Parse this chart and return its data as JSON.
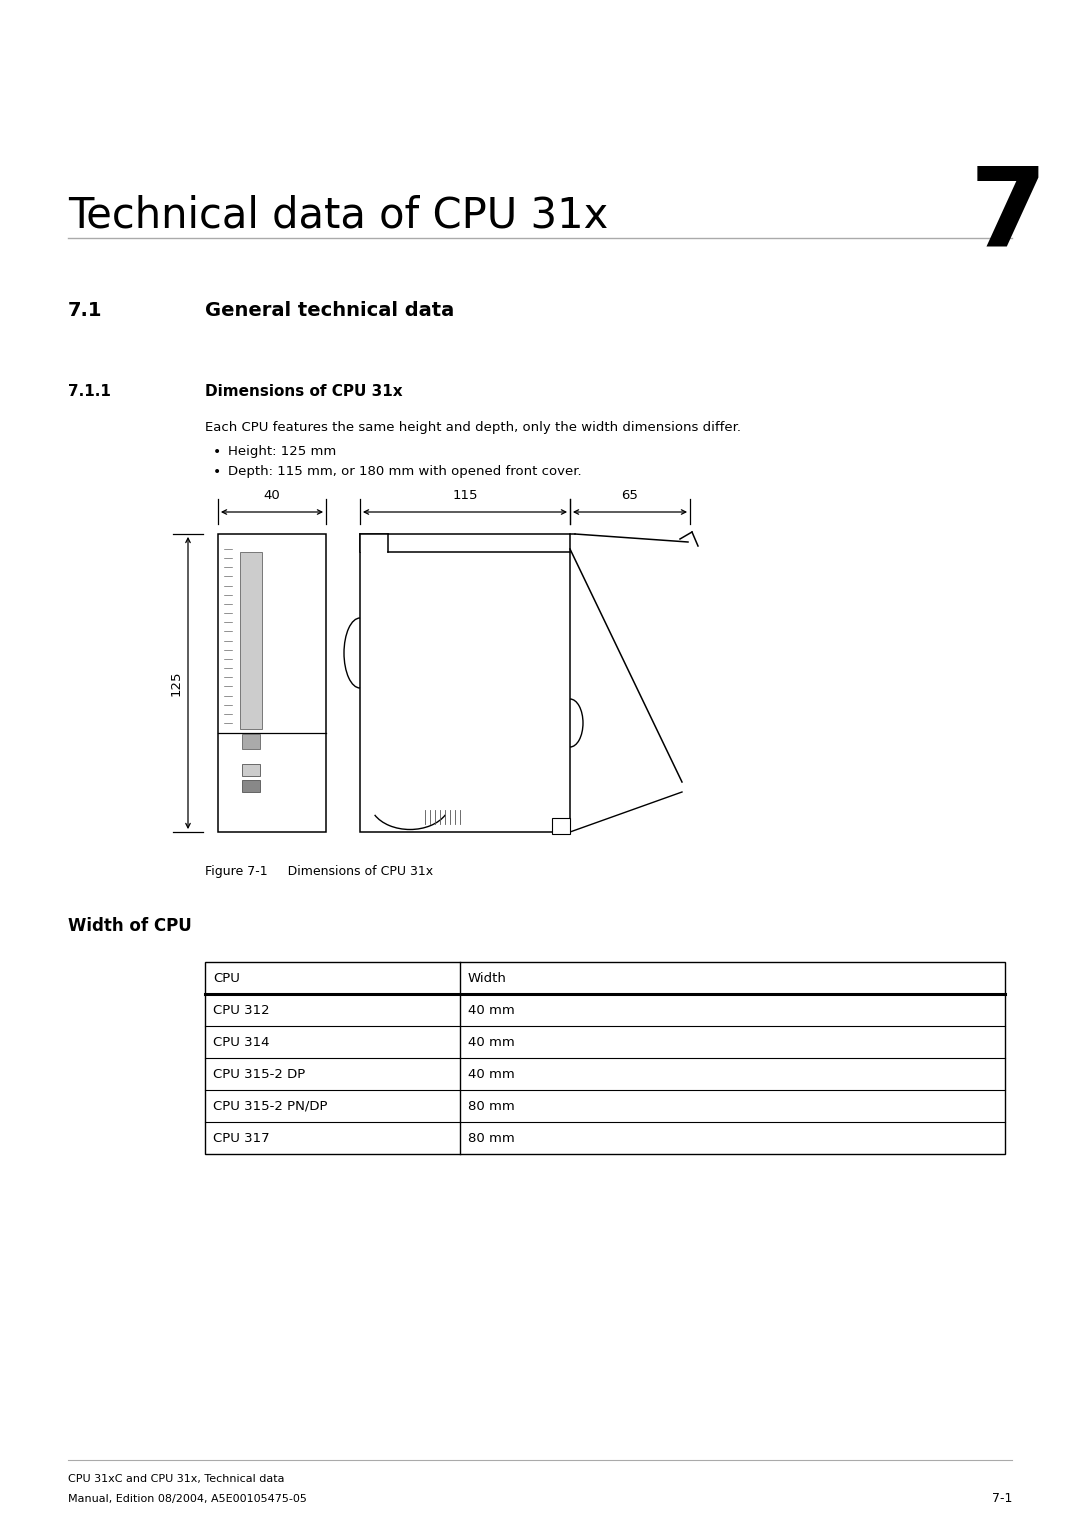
{
  "page_title": "Technical data of CPU 31x",
  "chapter_number": "7",
  "body_text": "Each CPU features the same height and depth, only the width dimensions differ.",
  "bullet1": "Height: 125 mm",
  "bullet2": "Depth: 115 mm, or 180 mm with opened front cover.",
  "figure_caption": "Figure 7-1     Dimensions of CPU 31x",
  "width_of_cpu_title": "Width of CPU",
  "table_headers": [
    "CPU",
    "Width"
  ],
  "table_rows": [
    [
      "CPU 312",
      "40 mm"
    ],
    [
      "CPU 314",
      "40 mm"
    ],
    [
      "CPU 315-2 DP",
      "40 mm"
    ],
    [
      "CPU 315-2 PN/DP",
      "80 mm"
    ],
    [
      "CPU 317",
      "80 mm"
    ]
  ],
  "footer_line1": "CPU 31xC and CPU 31x, Technical data",
  "footer_line2": "Manual, Edition 08/2004, A5E00105475-05",
  "footer_page": "7-1",
  "bg_color": "#ffffff",
  "text_color": "#000000",
  "dim_40": "40",
  "dim_115": "115",
  "dim_65": "65",
  "dim_125": "125",
  "sec71": "7.1",
  "sec71_title": "General technical data",
  "sec711": "7.1.1",
  "sec711_title": "Dimensions of CPU 31x"
}
